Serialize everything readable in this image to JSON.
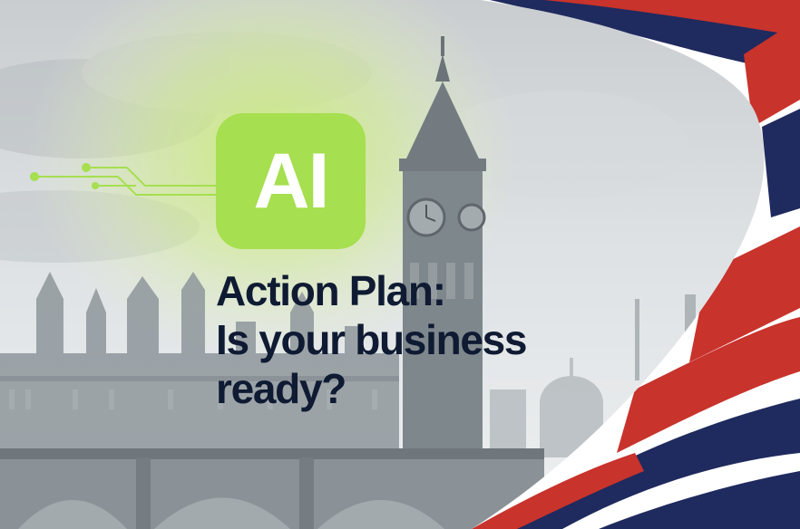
{
  "badge": {
    "label": "AI",
    "color": "#a6df4f"
  },
  "headline": {
    "line1": "Action Plan:",
    "line2": "Is your business",
    "line3": "ready?",
    "color": "#0f1a33"
  },
  "icons": [
    "circuit-lines-icon",
    "big-ben-clock-tower",
    "parliament-building",
    "union-jack-flag"
  ],
  "flag_colors": {
    "red": "#c8332c",
    "blue": "#1f2a5e",
    "white": "#ffffff"
  }
}
